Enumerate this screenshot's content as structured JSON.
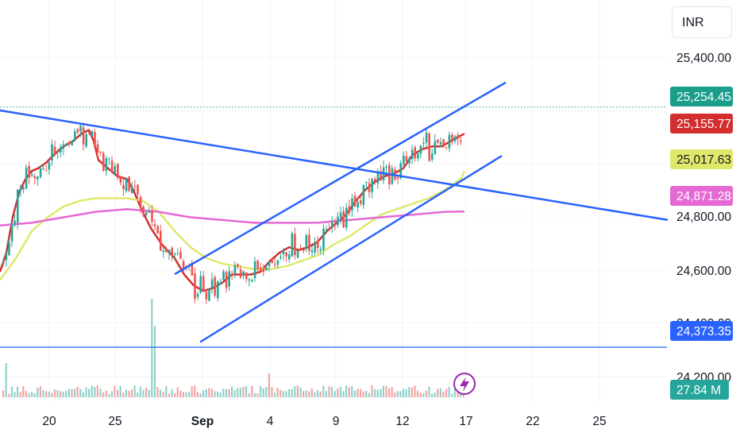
{
  "currency": "INR",
  "colors": {
    "up": "#26a69a",
    "down": "#ef5350",
    "ema_short": "#d32f2f",
    "ema_mid": "#dfe86b",
    "ema_long": "#e469d4",
    "trendline": "#2962ff",
    "last_price": "#1a9e8a",
    "grid": "#f0f3fa"
  },
  "chart_data": {
    "type": "candlestick",
    "symbol_overlay_icon": "lightning-icon",
    "x_ticks": [
      "20",
      "25",
      "Sep",
      "4",
      "9",
      "12",
      "17",
      "22",
      "25"
    ],
    "y_ticks": [
      "25,400.00",
      "24,800.00",
      "24,600.00",
      "24,400.00",
      "24,200.00"
    ],
    "y_range": [
      24150,
      25590
    ],
    "price_labels": [
      {
        "id": "last",
        "text": "25,254.45",
        "value": 25254.45,
        "color": "#1a9e8a"
      },
      {
        "id": "ema_short",
        "text": "25,155.77",
        "value": 25155.77,
        "color": "#d32f2f"
      },
      {
        "id": "ema_mid",
        "text": "25,017.63",
        "value": 25017.63,
        "color": "#dfe86b"
      },
      {
        "id": "ema_long",
        "text": "24,871.28",
        "value": 24871.28,
        "color": "#e469d4"
      },
      {
        "id": "support",
        "text": "24,373.35",
        "value": 24373.35,
        "color": "#2962ff"
      }
    ],
    "volume_label": "27.84 M",
    "support_level": 24373.35,
    "last_price": 25254.45,
    "series": [
      {
        "name": "EMA short",
        "color": "#d32f2f",
        "points": [
          [
            0,
            24650
          ],
          [
            8,
            24720
          ],
          [
            16,
            24850
          ],
          [
            24,
            24940
          ],
          [
            32,
            24990
          ],
          [
            40,
            25020
          ],
          [
            48,
            25030
          ],
          [
            58,
            25050
          ],
          [
            68,
            25080
          ],
          [
            80,
            25110
          ],
          [
            92,
            25130
          ],
          [
            104,
            25160
          ],
          [
            112,
            25170
          ],
          [
            118,
            25130
          ],
          [
            124,
            25060
          ],
          [
            136,
            25030
          ],
          [
            148,
            25000
          ],
          [
            160,
            24990
          ],
          [
            168,
            24950
          ],
          [
            178,
            24880
          ],
          [
            190,
            24810
          ],
          [
            204,
            24750
          ],
          [
            220,
            24700
          ],
          [
            232,
            24640
          ],
          [
            244,
            24600
          ],
          [
            256,
            24580
          ],
          [
            268,
            24590
          ],
          [
            280,
            24610
          ],
          [
            292,
            24640
          ],
          [
            304,
            24640
          ],
          [
            316,
            24640
          ],
          [
            328,
            24650
          ],
          [
            340,
            24690
          ],
          [
            352,
            24720
          ],
          [
            364,
            24740
          ],
          [
            376,
            24730
          ],
          [
            388,
            24740
          ],
          [
            400,
            24760
          ],
          [
            412,
            24800
          ],
          [
            424,
            24830
          ],
          [
            436,
            24860
          ],
          [
            448,
            24910
          ],
          [
            460,
            24950
          ],
          [
            472,
            24980
          ],
          [
            484,
            25000
          ],
          [
            496,
            25010
          ],
          [
            508,
            25030
          ],
          [
            520,
            25080
          ],
          [
            532,
            25100
          ],
          [
            544,
            25110
          ],
          [
            556,
            25110
          ],
          [
            568,
            25130
          ],
          [
            580,
            25150
          ],
          [
            585,
            25156
          ]
        ]
      },
      {
        "name": "EMA mid",
        "color": "#dfe86b",
        "points": [
          [
            0,
            24620
          ],
          [
            20,
            24700
          ],
          [
            40,
            24800
          ],
          [
            60,
            24850
          ],
          [
            80,
            24890
          ],
          [
            100,
            24910
          ],
          [
            120,
            24920
          ],
          [
            140,
            24920
          ],
          [
            160,
            24920
          ],
          [
            180,
            24910
          ],
          [
            200,
            24870
          ],
          [
            220,
            24800
          ],
          [
            240,
            24740
          ],
          [
            260,
            24700
          ],
          [
            280,
            24680
          ],
          [
            300,
            24670
          ],
          [
            320,
            24660
          ],
          [
            340,
            24660
          ],
          [
            360,
            24670
          ],
          [
            380,
            24690
          ],
          [
            400,
            24710
          ],
          [
            420,
            24750
          ],
          [
            440,
            24780
          ],
          [
            460,
            24820
          ],
          [
            480,
            24860
          ],
          [
            500,
            24880
          ],
          [
            520,
            24900
          ],
          [
            540,
            24920
          ],
          [
            560,
            24950
          ],
          [
            580,
            24990
          ],
          [
            585,
            25018
          ]
        ]
      },
      {
        "name": "EMA long",
        "color": "#e469d4",
        "points": [
          [
            0,
            24820
          ],
          [
            40,
            24830
          ],
          [
            80,
            24850
          ],
          [
            120,
            24870
          ],
          [
            160,
            24880
          ],
          [
            200,
            24870
          ],
          [
            240,
            24850
          ],
          [
            280,
            24840
          ],
          [
            320,
            24830
          ],
          [
            360,
            24830
          ],
          [
            400,
            24830
          ],
          [
            440,
            24840
          ],
          [
            480,
            24850
          ],
          [
            520,
            24860
          ],
          [
            560,
            24870
          ],
          [
            585,
            24871
          ]
        ]
      }
    ],
    "trendlines": [
      {
        "name": "descending",
        "from": [
          0,
          25242
        ],
        "to": [
          840,
          24841
        ]
      },
      {
        "name": "channel upper",
        "from": [
          221,
          24643
        ],
        "to": [
          636,
          25343
        ]
      },
      {
        "name": "channel lower",
        "from": [
          253,
          24394
        ],
        "to": [
          631,
          25074
        ]
      }
    ]
  }
}
